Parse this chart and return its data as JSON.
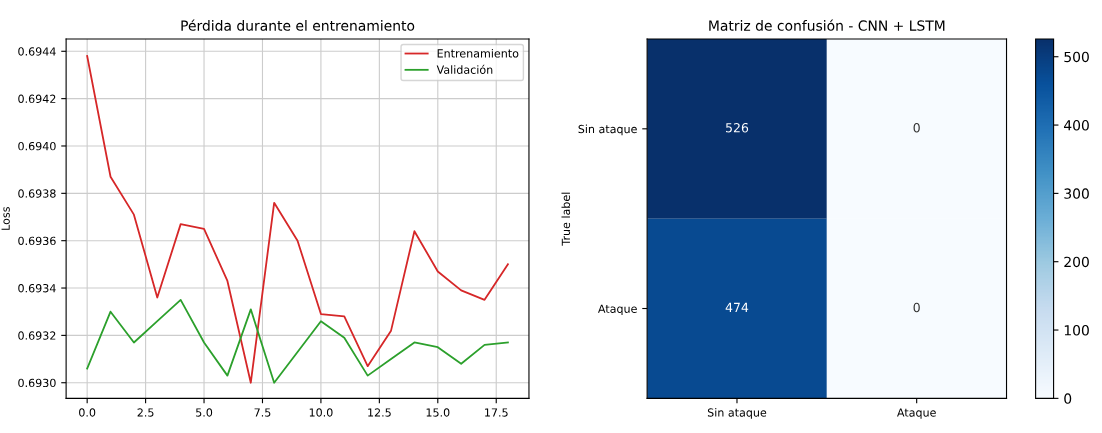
{
  "chart_data": [
    {
      "type": "line",
      "title": "Pérdida durante el entrenamiento",
      "ylabel": "Loss",
      "x": [
        0,
        1,
        2,
        3,
        4,
        5,
        6,
        7,
        8,
        9,
        10,
        11,
        12,
        13,
        14,
        15,
        16,
        17,
        18
      ],
      "series": [
        {
          "name": "Entrenamiento",
          "color": "#d62728",
          "values": [
            0.69438,
            0.69387,
            0.69371,
            0.69336,
            0.69367,
            0.69365,
            0.69343,
            0.693,
            0.69376,
            0.6936,
            0.69329,
            0.69328,
            0.69307,
            0.69322,
            0.69364,
            0.69347,
            0.69339,
            0.69335,
            0.6935
          ]
        },
        {
          "name": "Validación",
          "color": "#2ca02c",
          "values": [
            0.69306,
            0.6933,
            0.69317,
            0.69326,
            0.69335,
            0.69317,
            0.69303,
            0.69331,
            0.693,
            0.69313,
            0.69326,
            0.69319,
            0.69303,
            0.6931,
            0.69317,
            0.69315,
            0.69308,
            0.69316,
            0.69317
          ]
        }
      ],
      "xlim": [
        -0.9,
        18.9
      ],
      "xticks": [
        {
          "value": 0,
          "label": "0.0"
        },
        {
          "value": 2.5,
          "label": "2.5"
        },
        {
          "value": 5,
          "label": "5.0"
        },
        {
          "value": 7.5,
          "label": "7.5"
        },
        {
          "value": 10,
          "label": "10.0"
        },
        {
          "value": 12.5,
          "label": "12.5"
        },
        {
          "value": 15,
          "label": "15.0"
        },
        {
          "value": 17.5,
          "label": "17.5"
        }
      ],
      "ylim": [
        0.692934,
        0.694452
      ],
      "yticks": [
        {
          "value": 0.693,
          "label": "0.6930"
        },
        {
          "value": 0.6932,
          "label": "0.6932"
        },
        {
          "value": 0.6934,
          "label": "0.6934"
        },
        {
          "value": 0.6936,
          "label": "0.6936"
        },
        {
          "value": 0.6938,
          "label": "0.6938"
        },
        {
          "value": 0.694,
          "label": "0.6940"
        },
        {
          "value": 0.6942,
          "label": "0.6942"
        },
        {
          "value": 0.6944,
          "label": "0.6944"
        }
      ],
      "grid": true,
      "legend": "top right"
    },
    {
      "type": "heatmap",
      "title": "Matriz de confusión - CNN + LSTM",
      "ylabel": "True label",
      "categories": [
        "Sin ataque",
        "Ataque"
      ],
      "y_categories": [
        "Sin ataque",
        "Ataque"
      ],
      "cells": [
        [
          526,
          0
        ],
        [
          474,
          0
        ]
      ],
      "data_labels": true,
      "clim": [
        0,
        526
      ],
      "cticks": [
        0,
        100,
        200,
        300,
        400,
        500
      ]
    }
  ]
}
